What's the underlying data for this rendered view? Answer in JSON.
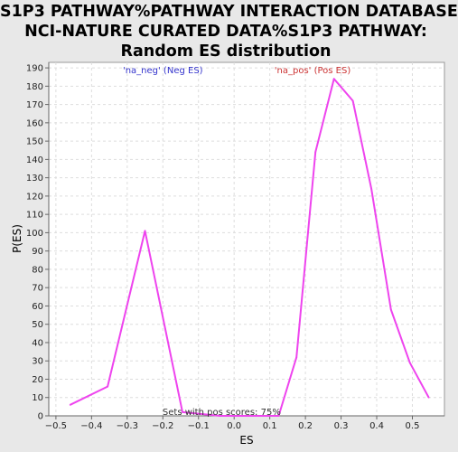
{
  "chart_data": {
    "type": "line",
    "title_lines": [
      "S1P3 PATHWAY%PATHWAY INTERACTION DATABASE",
      "NCI-NATURE CURATED DATA%S1P3 PATHWAY:",
      "Random ES distribution"
    ],
    "xlabel": "ES",
    "ylabel": "P(ES)",
    "xlim": [
      -0.52,
      0.59
    ],
    "ylim": [
      0,
      193
    ],
    "x_ticks": [
      -0.5,
      -0.4,
      -0.3,
      -0.2,
      -0.1,
      0.0,
      0.1,
      0.2,
      0.3,
      0.4,
      0.5
    ],
    "x_tick_labels": [
      "−0.5",
      "−0.4",
      "−0.3",
      "−0.2",
      "−0.1",
      "0.0",
      "0.1",
      "0.2",
      "0.3",
      "0.4",
      "0.5"
    ],
    "y_ticks": [
      0,
      10,
      20,
      30,
      40,
      50,
      60,
      70,
      80,
      90,
      100,
      110,
      120,
      130,
      140,
      150,
      160,
      170,
      180,
      190
    ],
    "grid": true,
    "line_color": "#ee44ee",
    "series": [
      {
        "x": [
          -0.46,
          -0.355,
          -0.25,
          -0.145,
          -0.04,
          0.02,
          0.125,
          0.175,
          0.228,
          0.28,
          0.333,
          0.385,
          0.44,
          0.493,
          0.546
        ],
        "values": [
          6,
          16,
          101,
          2,
          0,
          0,
          0,
          32,
          144,
          184,
          172,
          124,
          58,
          29,
          10
        ]
      }
    ],
    "annotations": [
      {
        "text": "'na_neg' (Neg ES)",
        "color": "#3333cc",
        "x": -0.2
      },
      {
        "text": "'na_pos' (Pos ES)",
        "color": "#cc3333",
        "x": 0.22
      },
      {
        "text": "Sets with pos scores: 75%",
        "color": "#333333",
        "x": -0.035
      }
    ]
  }
}
